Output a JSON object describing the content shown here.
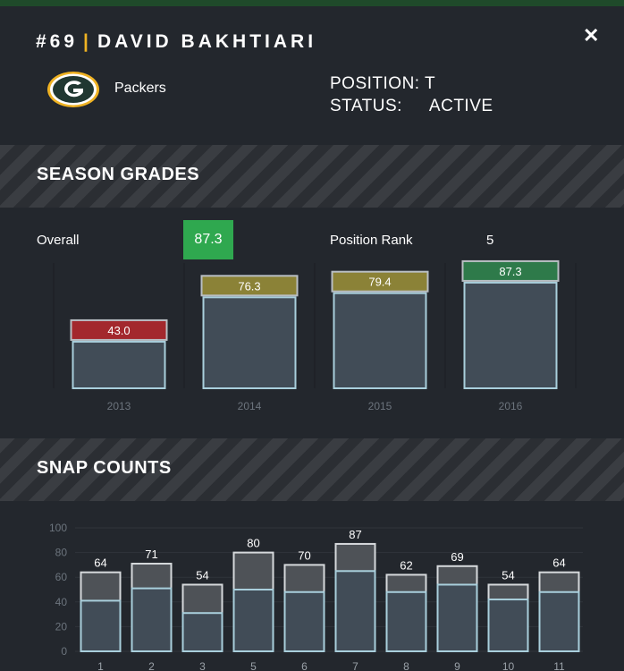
{
  "header": {
    "number": "#69",
    "separator": "|",
    "name": "DAVID BAKHTIARI",
    "close_icon": "close-icon",
    "team": "Packers",
    "position_label": "POSITION:",
    "position_value": "T",
    "status_label": "STATUS:",
    "status_value": "ACTIVE"
  },
  "season": {
    "title": "SEASON GRADES",
    "overall_label": "Overall",
    "overall_value": "87.3",
    "rank_label": "Position Rank",
    "rank_value": "5"
  },
  "snaps": {
    "title": "SNAP COUNTS"
  },
  "colors": {
    "red": "#a3282d",
    "gold": "#8b8237",
    "green": "#2e7a4a",
    "badge": "#2fa84f"
  },
  "chart_data": [
    {
      "type": "bar",
      "categories": [
        "2013",
        "2014",
        "2015",
        "2016"
      ],
      "values": [
        43.0,
        76.3,
        79.4,
        87.3
      ],
      "labels": [
        "43.0",
        "76.3",
        "79.4",
        "87.3"
      ],
      "grade_colors": [
        "#a3282d",
        "#8b8237",
        "#8b8237",
        "#2e7a4a"
      ]
    },
    {
      "type": "bar",
      "categories": [
        "1",
        "2",
        "3",
        "5",
        "6",
        "7",
        "8",
        "9",
        "10",
        "11"
      ],
      "values": [
        64,
        71,
        54,
        80,
        70,
        87,
        62,
        69,
        54,
        64
      ],
      "inner_values": [
        41,
        51,
        31,
        50,
        48,
        65,
        48,
        54,
        42,
        48
      ],
      "ylim": [
        0,
        100
      ],
      "yticks": [
        "0",
        "20",
        "40",
        "60",
        "80",
        "100"
      ]
    }
  ]
}
